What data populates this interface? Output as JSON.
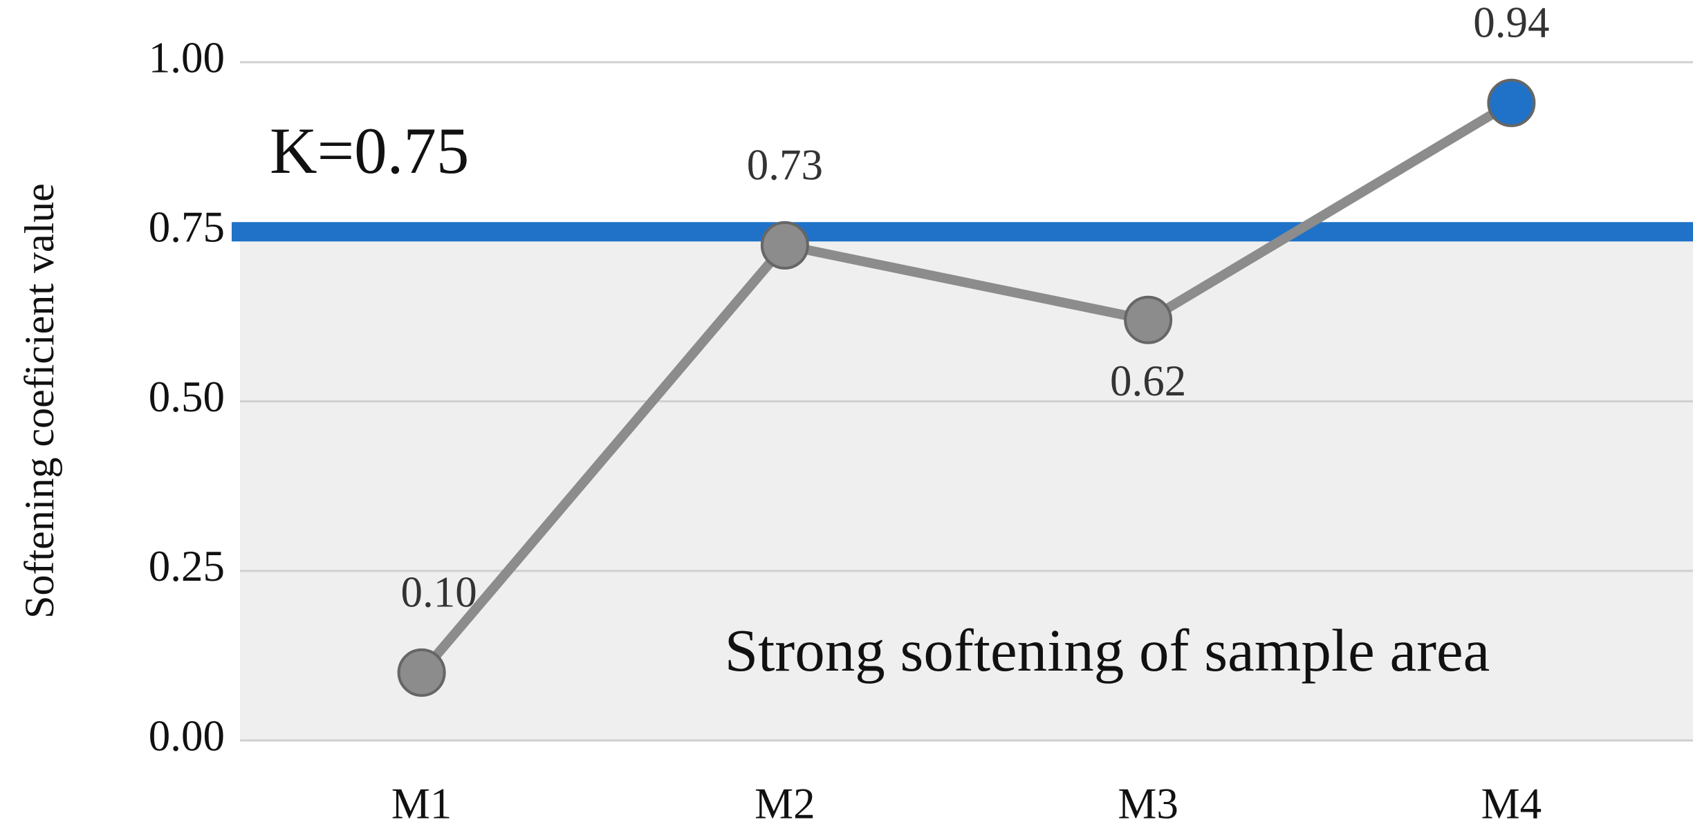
{
  "chart_data": {
    "type": "line",
    "y_label": "Softening coeficient value",
    "categories": [
      "M1",
      "M2",
      "M3",
      "M4"
    ],
    "series": [
      {
        "name": "Softening coeficient",
        "color": "#8c8c8c",
        "values": [
          0.1,
          0.73,
          0.62,
          0.94
        ],
        "value_labels": [
          "0.10",
          "0.73",
          "0.62",
          "0.94"
        ],
        "marker_colors": [
          "#8c8c8c",
          "#8c8c8c",
          "#8c8c8c",
          "#1f72c8"
        ]
      }
    ],
    "ylim": [
      0,
      1
    ],
    "yticks": [
      {
        "value": 0,
        "label": "0.00"
      },
      {
        "value": 0.25,
        "label": "0.25"
      },
      {
        "value": 0.5,
        "label": "0.50"
      },
      {
        "value": 0.75,
        "label": "0.75"
      },
      {
        "value": 1,
        "label": "1.00"
      }
    ],
    "grid": true,
    "reference_line": {
      "value": 0.75,
      "label": "K=0.75",
      "color": "#1f72c8"
    },
    "region_label": "Strong softening of sample area"
  }
}
